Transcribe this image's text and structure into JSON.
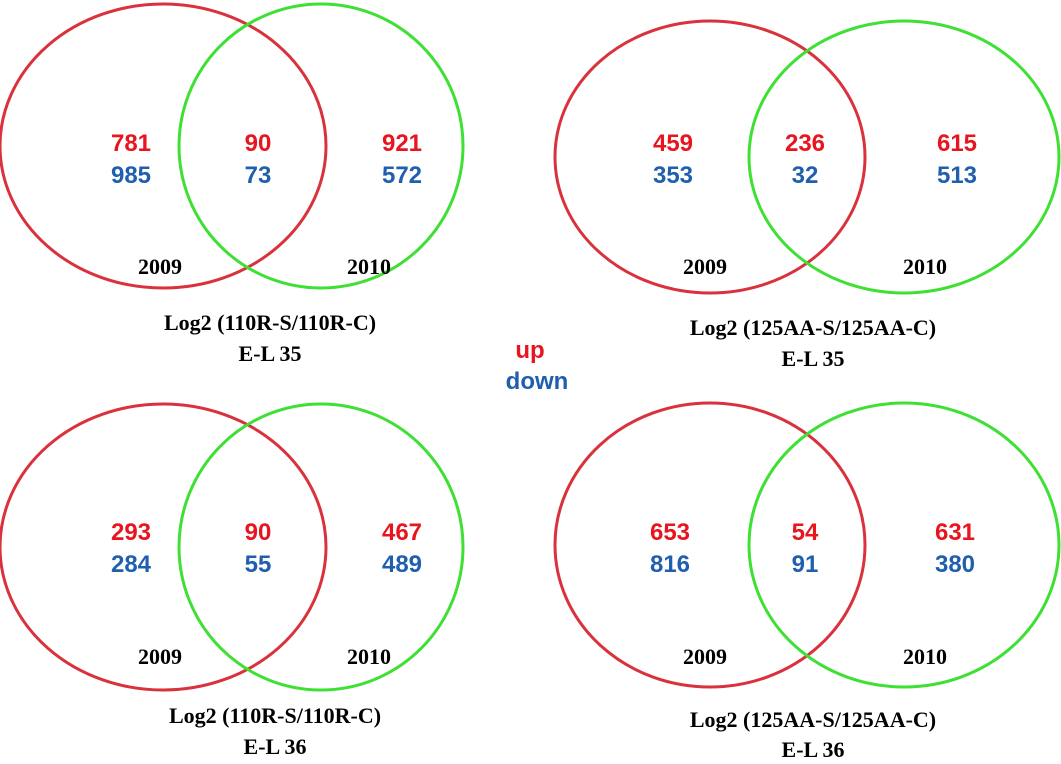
{
  "colors": {
    "up": "#e8141e",
    "down": "#1f5fae",
    "circle_2009": "#d9323c",
    "circle_2010": "#3ee034",
    "text": "#000000"
  },
  "legend": {
    "up": "up",
    "down": "down"
  },
  "diagrams": [
    {
      "set_a": "2009",
      "set_b": "2010",
      "only_a": {
        "up": "781",
        "down": "985"
      },
      "both": {
        "up": "90",
        "down": "73"
      },
      "only_b": {
        "up": "921",
        "down": "572"
      },
      "caption_line1": "Log2 (110R-S/110R-C)",
      "caption_line2": "E-L 35"
    },
    {
      "set_a": "2009",
      "set_b": "2010",
      "only_a": {
        "up": "459",
        "down": "353"
      },
      "both": {
        "up": "236",
        "down": "32"
      },
      "only_b": {
        "up": "615",
        "down": "513"
      },
      "caption_line1": "Log2 (125AA-S/125AA-C)",
      "caption_line2": "E-L 35"
    },
    {
      "set_a": "2009",
      "set_b": "2010",
      "only_a": {
        "up": "293",
        "down": "284"
      },
      "both": {
        "up": "90",
        "down": "55"
      },
      "only_b": {
        "up": "467",
        "down": "489"
      },
      "caption_line1": "Log2 (110R-S/110R-C)",
      "caption_line2": "E-L 36"
    },
    {
      "set_a": "2009",
      "set_b": "2010",
      "only_a": {
        "up": "653",
        "down": "816"
      },
      "both": {
        "up": "54",
        "down": "91"
      },
      "only_b": {
        "up": "631",
        "down": "380"
      },
      "caption_line1": "Log2 (125AA-S/125AA-C)",
      "caption_line2": "E-L 36"
    }
  ]
}
